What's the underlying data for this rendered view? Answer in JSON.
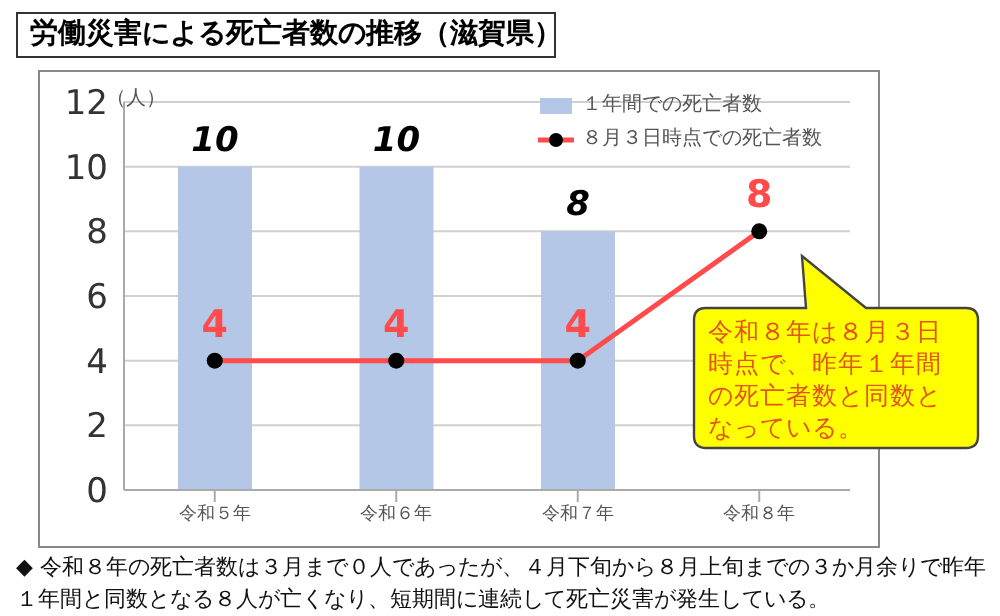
{
  "chart_data": {
    "type": "bar",
    "title": "労働災害による死亡者数の推移（滋賀県）",
    "ylabel": "（人）",
    "categories": [
      "令和５年",
      "令和６年",
      "令和７年",
      "令和８年"
    ],
    "series": [
      {
        "name": "１年間での死亡者数",
        "color": "#b4c7e7",
        "values": [
          10,
          10,
          8,
          null
        ]
      },
      {
        "name": "８月３日時点での死亡者数",
        "type": "line",
        "color": "#ff4b4b",
        "values": [
          4,
          4,
          4,
          8
        ]
      }
    ],
    "ylim": [
      0,
      12
    ],
    "yticks": [
      0,
      2,
      4,
      6,
      8,
      10,
      12
    ],
    "grid": "y",
    "legend": "top right",
    "marker": "circle",
    "line_style": "solid",
    "data_labels": true,
    "annotations": [
      "令和８年は８月３日時点で、昨年１年間の死亡者数と同数となっている。",
      "◆ 令和８年の死亡者数は３月まで０人であったが、４月下旬から８月上旬までの３か月余りで昨年１年間と同数となる８人が亡くなり、短期間に連続して死亡災害が発生している。"
    ]
  }
}
